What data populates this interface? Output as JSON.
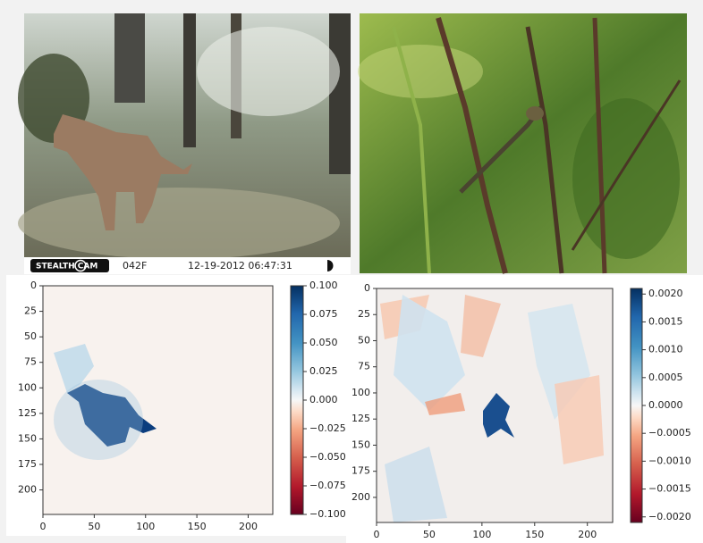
{
  "photos": [
    {
      "overlay": {
        "brand": "STEALTH CAM",
        "code": "042F",
        "timestamp": "12-19-2012 06:47:31"
      }
    }
  ],
  "chart_data": [
    {
      "type": "heatmap",
      "colormap": "RdBu",
      "xlim": [
        0,
        224
      ],
      "xticks": [
        0,
        50,
        100,
        150,
        200
      ],
      "ylim": [
        224,
        0
      ],
      "yticks": [
        0,
        25,
        50,
        75,
        100,
        125,
        150,
        175,
        200
      ],
      "clim": [
        -0.1,
        0.1
      ],
      "cticks": [
        {
          "value": 0.1,
          "label": "0.100"
        },
        {
          "value": 0.075,
          "label": "0.075"
        },
        {
          "value": 0.05,
          "label": "0.050"
        },
        {
          "value": 0.025,
          "label": "0.025"
        },
        {
          "value": 0,
          "label": "0.000"
        },
        {
          "value": -0.025,
          "label": "−0.025"
        },
        {
          "value": -0.05,
          "label": "−0.050"
        },
        {
          "value": -0.075,
          "label": "−0.075"
        },
        {
          "value": -0.1,
          "label": "−0.100"
        }
      ]
    },
    {
      "type": "heatmap",
      "colormap": "RdBu",
      "xlim": [
        0,
        224
      ],
      "xticks": [
        0,
        50,
        100,
        150,
        200
      ],
      "ylim": [
        224,
        0
      ],
      "yticks": [
        0,
        25,
        50,
        75,
        100,
        125,
        150,
        175,
        200
      ],
      "clim": [
        -0.0021,
        0.0021
      ],
      "cticks": [
        {
          "value": 0.002,
          "label": "0.0020"
        },
        {
          "value": 0.0015,
          "label": "0.0015"
        },
        {
          "value": 0.001,
          "label": "0.0010"
        },
        {
          "value": 0.0005,
          "label": "0.0005"
        },
        {
          "value": 0,
          "label": "0.0000"
        },
        {
          "value": -0.0005,
          "label": "−0.0005"
        },
        {
          "value": -0.001,
          "label": "−0.0010"
        },
        {
          "value": -0.0015,
          "label": "−0.0015"
        },
        {
          "value": -0.002,
          "label": "−0.0020"
        }
      ]
    }
  ]
}
